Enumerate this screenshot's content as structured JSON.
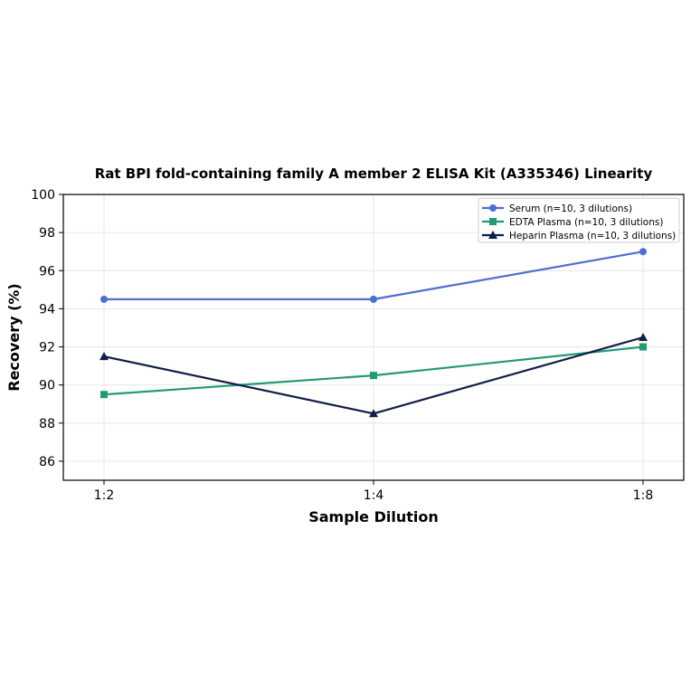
{
  "chart_data": {
    "type": "line",
    "title": "Rat BPI fold-containing family A member 2 ELISA Kit (A335346) Linearity",
    "xlabel": "Sample Dilution",
    "ylabel": "Recovery (%)",
    "categories": [
      "1:2",
      "1:4",
      "1:8"
    ],
    "ylim": [
      85,
      100
    ],
    "yticks": [
      86,
      88,
      90,
      92,
      94,
      96,
      98,
      100
    ],
    "grid": true,
    "legend_position": "top-right",
    "series": [
      {
        "name": "Serum (n=10, 3 dilutions)",
        "values": [
          94.5,
          94.5,
          97.0
        ],
        "color": "#4f6fd0",
        "marker": "circle"
      },
      {
        "name": "EDTA Plasma (n=10, 3 dilutions)",
        "values": [
          89.5,
          90.5,
          92.0
        ],
        "color": "#229a73",
        "marker": "square"
      },
      {
        "name": "Heparin Plasma (n=10, 3 dilutions)",
        "values": [
          91.5,
          88.5,
          92.5
        ],
        "color": "#111d4a",
        "marker": "triangle"
      }
    ]
  }
}
